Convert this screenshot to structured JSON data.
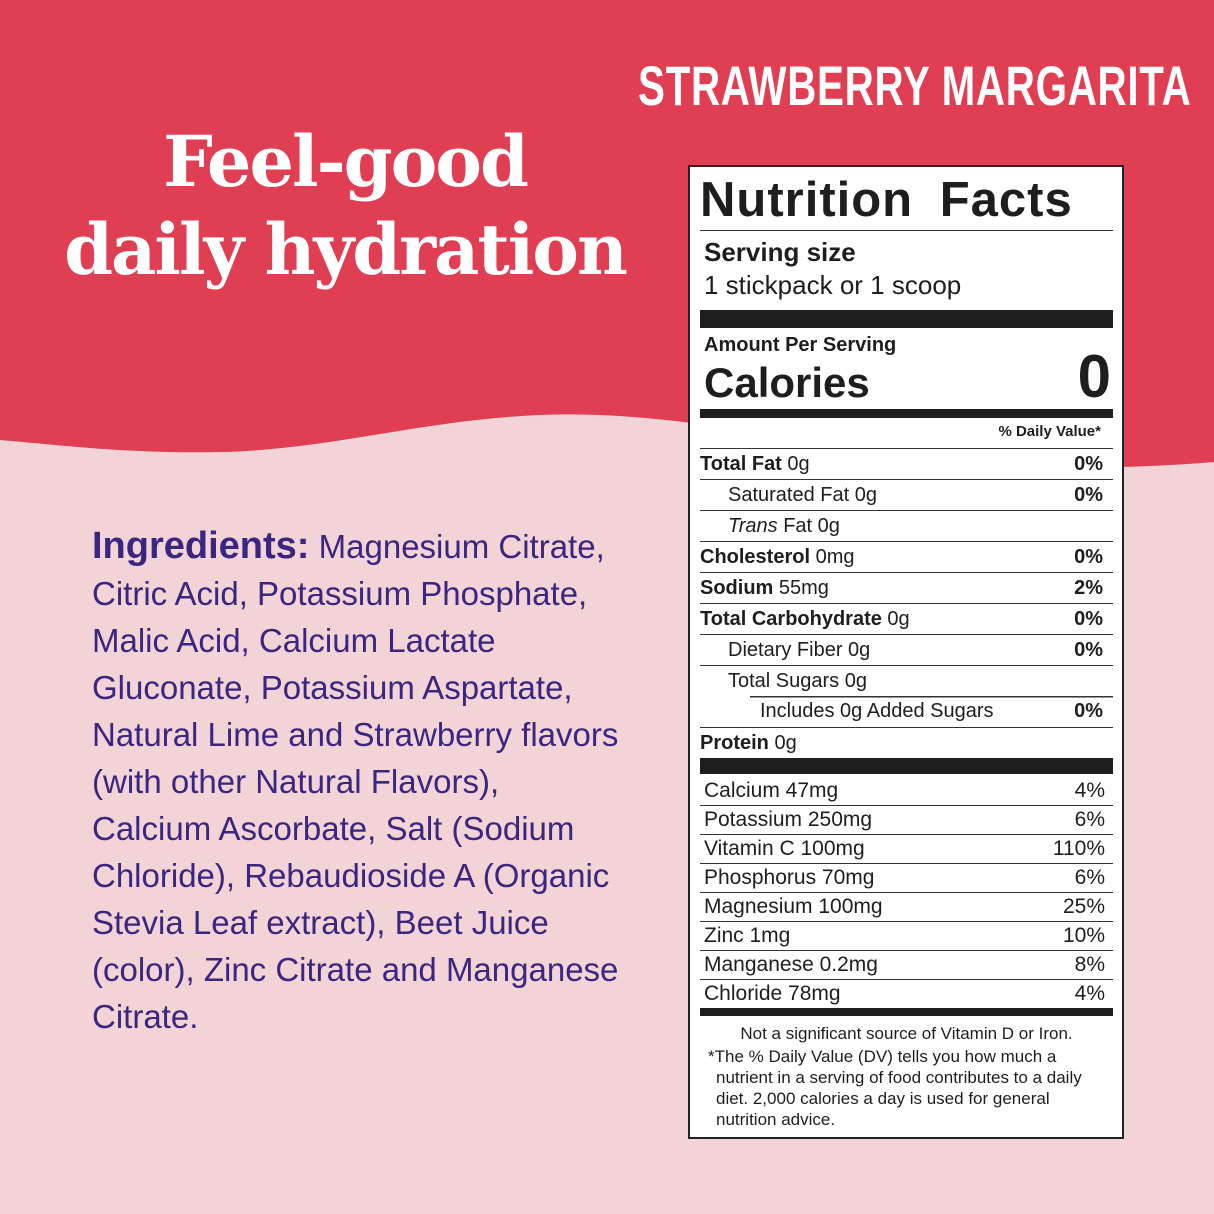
{
  "colors": {
    "top_band": "#e03e52",
    "background": "#f2d3d6",
    "ingredients_text": "#3a2680"
  },
  "flavor": "STRAWBERRY MARGARITA",
  "headline": {
    "line1": "Feel-good",
    "line2": "daily hydration"
  },
  "ingredients": {
    "label": "Ingredients:",
    "text": "Magnesium Citrate, Citric Acid, Potassium Phosphate, Malic Acid, Calcium Lactate Gluconate, Potassium Aspartate,  Natural Lime and Strawberry flavors (with other Natural Flavors), Calcium Ascorbate, Salt (Sodium Chloride), Rebaudioside A (Organic Stevia Leaf extract), Beet Juice (color), Zinc Citrate and Manganese Citrate."
  },
  "nutrition": {
    "title": "Nutrition Facts",
    "serving_label": "Serving size",
    "serving_value": "1 stickpack or 1 scoop",
    "amount_per_serving": "Amount Per Serving",
    "calories_label": "Calories",
    "calories_value": "0",
    "dv_header": "% Daily Value*",
    "rows": [
      {
        "bold": "Total Fat",
        "amount": " 0g",
        "pct": "0%",
        "indent": 0
      },
      {
        "bold": "",
        "amount": "Saturated Fat 0g",
        "pct": "0%",
        "indent": 1
      },
      {
        "italic": "Trans",
        "amount": " Fat 0g",
        "pct": "",
        "indent": 1
      },
      {
        "bold": "Cholesterol",
        "amount": " 0mg",
        "pct": "0%",
        "indent": 0
      },
      {
        "bold": "Sodium",
        "amount": " 55mg",
        "pct": "2%",
        "indent": 0
      },
      {
        "bold": "Total Carbohydrate",
        "amount": " 0g",
        "pct": "0%",
        "indent": 0
      },
      {
        "bold": "",
        "amount": "Dietary Fiber 0g",
        "pct": "0%",
        "indent": 1
      },
      {
        "bold": "",
        "amount": "Total Sugars 0g",
        "pct": "",
        "indent": 1
      },
      {
        "bold": "",
        "amount": "Includes 0g Added Sugars",
        "pct": "0%",
        "indent": 2
      },
      {
        "bold": "Protein",
        "amount": " 0g",
        "pct": "",
        "indent": 0
      }
    ],
    "minerals": [
      {
        "name": "Calcium 47mg",
        "pct": "4%"
      },
      {
        "name": "Potassium 250mg",
        "pct": "6%"
      },
      {
        "name": "Vitamin C 100mg",
        "pct": "110%"
      },
      {
        "name": "Phosphorus 70mg",
        "pct": "6%"
      },
      {
        "name": "Magnesium 100mg",
        "pct": "25%"
      },
      {
        "name": "Zinc 1mg",
        "pct": "10%"
      },
      {
        "name": "Manganese 0.2mg",
        "pct": "8%"
      },
      {
        "name": "Chloride 78mg",
        "pct": "4%"
      }
    ],
    "footnote1": "Not a significant source of Vitamin D or Iron.",
    "footnote2": "*The % Daily Value (DV) tells you how much a nutrient in a serving of food contributes to a daily diet. 2,000 calories a day is used for general nutrition advice."
  }
}
